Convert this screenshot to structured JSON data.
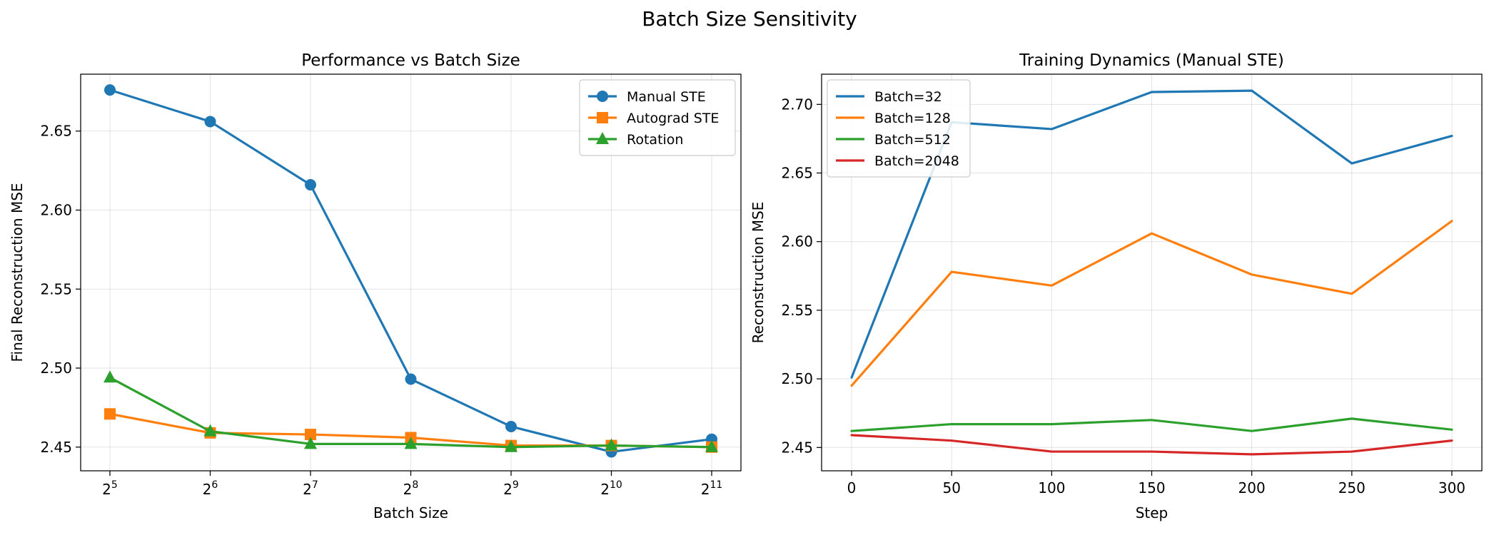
{
  "suptitle": "Batch Size Sensitivity",
  "chart_data": [
    {
      "type": "line",
      "title": "Performance vs Batch Size",
      "xlabel": "Batch Size",
      "ylabel": "Final Reconstruction MSE",
      "xscale": "log2",
      "x": [
        32,
        64,
        128,
        256,
        512,
        1024,
        2048
      ],
      "x_tick_labels": [
        {
          "base": "2",
          "exp": "5"
        },
        {
          "base": "2",
          "exp": "6"
        },
        {
          "base": "2",
          "exp": "7"
        },
        {
          "base": "2",
          "exp": "8"
        },
        {
          "base": "2",
          "exp": "9"
        },
        {
          "base": "2",
          "exp": "10"
        },
        {
          "base": "2",
          "exp": "11"
        }
      ],
      "ylim": [
        2.435,
        2.686
      ],
      "y_ticks": [
        "2.45",
        "2.50",
        "2.55",
        "2.60",
        "2.65"
      ],
      "grid": true,
      "legend_position": "top-right",
      "series": [
        {
          "name": "Manual STE",
          "color": "#1f77b4",
          "marker": "circle",
          "values": [
            2.676,
            2.656,
            2.616,
            2.493,
            2.463,
            2.447,
            2.455
          ]
        },
        {
          "name": "Autograd STE",
          "color": "#ff7f0e",
          "marker": "square",
          "values": [
            2.471,
            2.459,
            2.458,
            2.456,
            2.451,
            2.451,
            2.45
          ]
        },
        {
          "name": "Rotation",
          "color": "#2ca02c",
          "marker": "triangle",
          "values": [
            2.494,
            2.46,
            2.452,
            2.452,
            2.45,
            2.451,
            2.45
          ]
        }
      ]
    },
    {
      "type": "line",
      "title": "Training Dynamics (Manual STE)",
      "xlabel": "Step",
      "ylabel": "Reconstruction MSE",
      "x": [
        0,
        50,
        100,
        150,
        200,
        250,
        300
      ],
      "x_ticks": [
        "0",
        "50",
        "100",
        "150",
        "200",
        "250",
        "300"
      ],
      "xlim": [
        -15,
        315
      ],
      "ylim": [
        2.433,
        2.722
      ],
      "y_ticks": [
        "2.45",
        "2.50",
        "2.55",
        "2.60",
        "2.65",
        "2.70"
      ],
      "grid": true,
      "legend_position": "top-left",
      "series": [
        {
          "name": "Batch=32",
          "color": "#1f77b4",
          "values": [
            2.501,
            2.687,
            2.682,
            2.709,
            2.71,
            2.657,
            2.677
          ]
        },
        {
          "name": "Batch=128",
          "color": "#ff7f0e",
          "values": [
            2.495,
            2.578,
            2.568,
            2.606,
            2.576,
            2.562,
            2.615
          ]
        },
        {
          "name": "Batch=512",
          "color": "#2ca02c",
          "values": [
            2.462,
            2.467,
            2.467,
            2.47,
            2.462,
            2.471,
            2.463
          ]
        },
        {
          "name": "Batch=2048",
          "color": "#d62728",
          "values": [
            2.459,
            2.455,
            2.447,
            2.447,
            2.445,
            2.447,
            2.455
          ]
        }
      ]
    }
  ]
}
